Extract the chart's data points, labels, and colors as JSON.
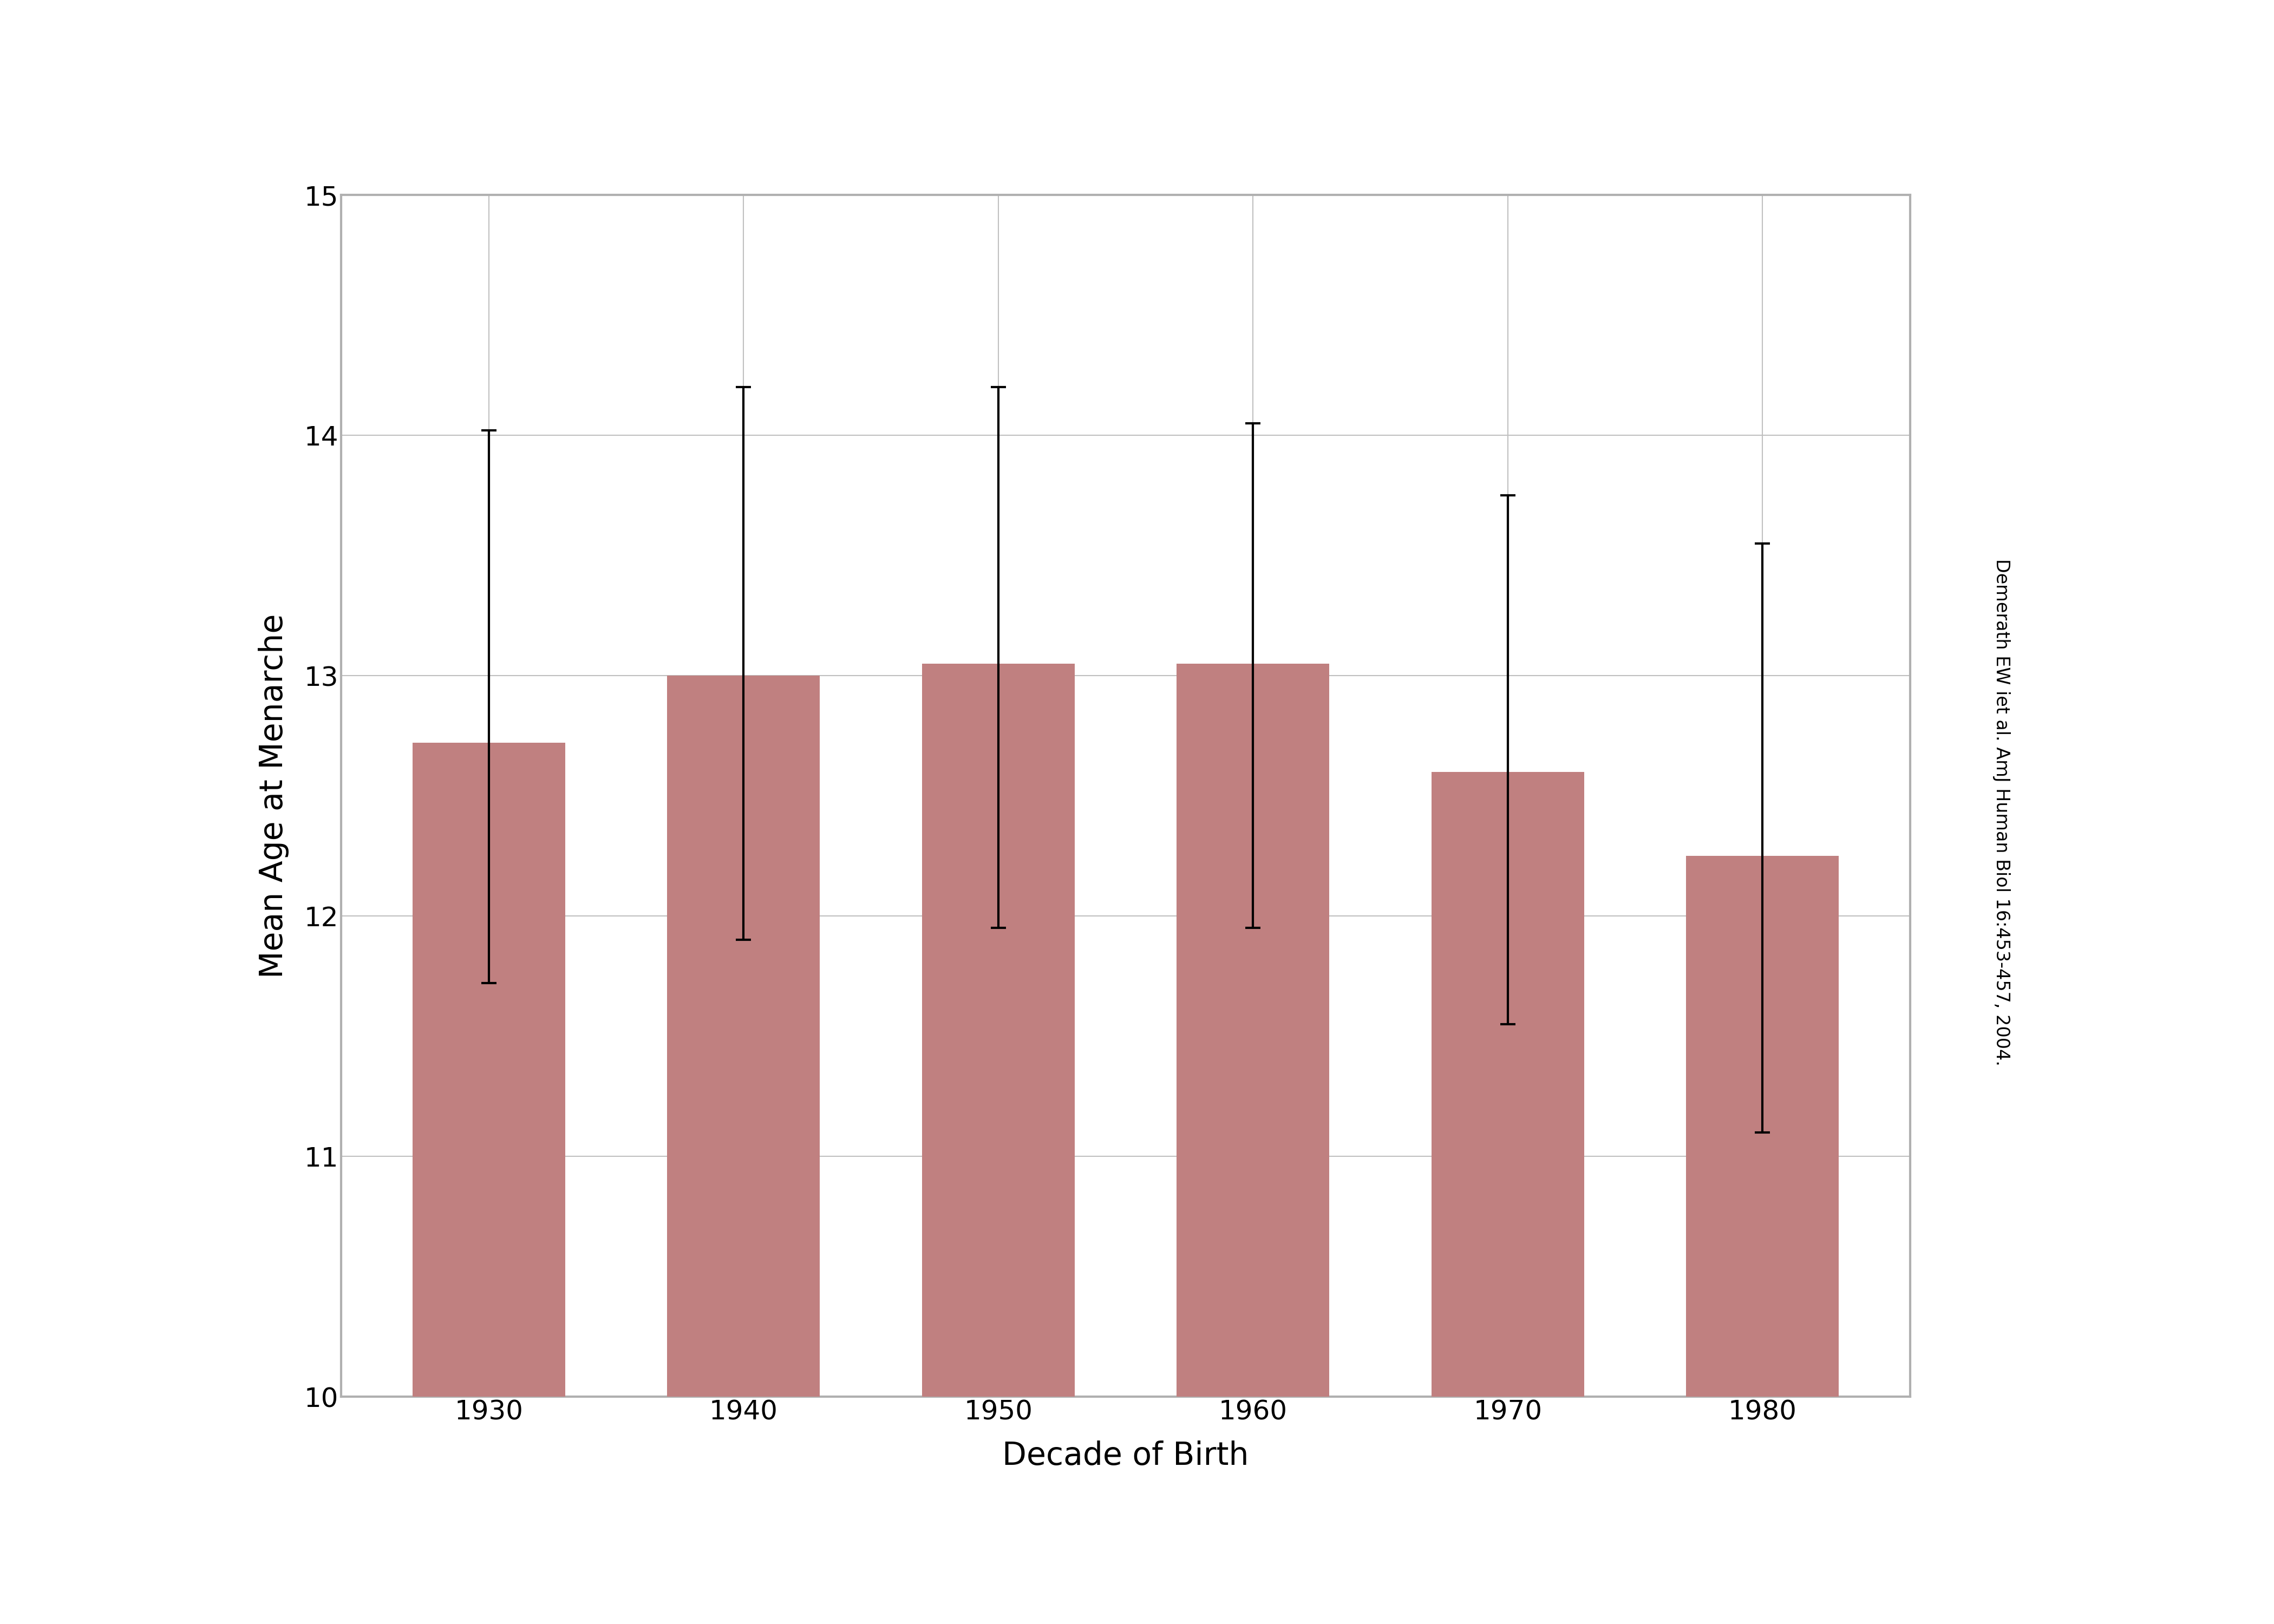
{
  "categories": [
    "1930",
    "1940",
    "1950",
    "1960",
    "1970",
    "1980"
  ],
  "values": [
    12.72,
    13.0,
    13.05,
    13.05,
    12.6,
    12.25
  ],
  "yerr_upper": [
    1.3,
    1.2,
    1.15,
    1.0,
    1.15,
    1.3
  ],
  "yerr_lower": [
    1.0,
    1.1,
    1.1,
    1.1,
    1.05,
    1.15
  ],
  "bar_color": "#c08080",
  "bar_edge_color": "none",
  "error_color": "black",
  "error_linewidth": 3.0,
  "error_capsize": 10,
  "ylabel": "Mean Age at Menarche",
  "xlabel": "Decade of Birth",
  "ylim": [
    10,
    15
  ],
  "yticks": [
    10,
    11,
    12,
    13,
    14,
    15
  ],
  "grid_color": "#c0c0c0",
  "grid_linewidth": 1.5,
  "spine_color": "#b0b0b0",
  "spine_linewidth": 3.0,
  "annotation": "Demerath EW iet al. AmJ Human Biol 16:453-457, 2004.",
  "background_color": "#ffffff",
  "tick_fontsize": 36,
  "label_fontsize": 42,
  "annotation_fontsize": 24,
  "bar_width": 0.6
}
